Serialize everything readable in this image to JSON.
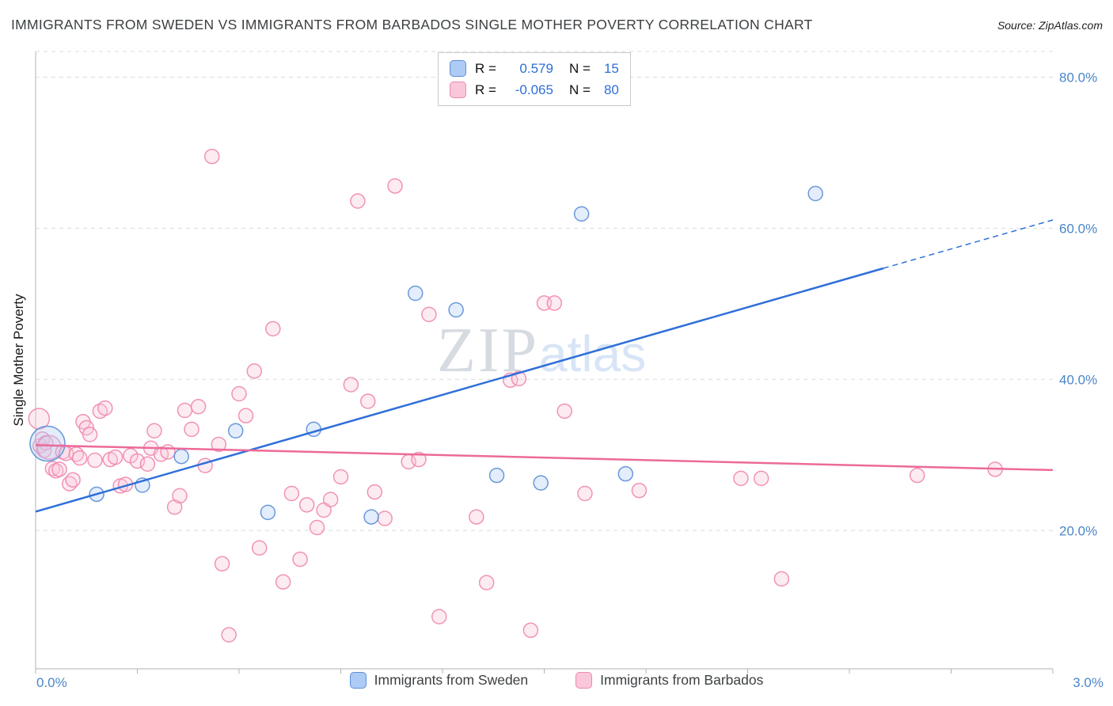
{
  "header": {
    "title": "IMMIGRANTS FROM SWEDEN VS IMMIGRANTS FROM BARBADOS SINGLE MOTHER POVERTY CORRELATION CHART",
    "source": "Source: ZipAtlas.com"
  },
  "watermark": {
    "part1": "ZIP",
    "part2": "atlas"
  },
  "legend_box": {
    "rows": [
      {
        "series": "Immigrants from Sweden",
        "r_label": "R =",
        "r_value": "0.579",
        "n_label": "N =",
        "n_value": "15"
      },
      {
        "series": "Immigrants from Barbados",
        "r_label": "R =",
        "r_value": "-0.065",
        "n_label": "N =",
        "n_value": "80"
      }
    ]
  },
  "chart_data": {
    "type": "scatter",
    "title": "Immigrants from Sweden vs Immigrants from Barbados Single Mother Poverty",
    "xlabel": "",
    "ylabel": "Single Mother Poverty",
    "x_axis": {
      "range": [
        0,
        3.0
      ],
      "tick_step": 0.3,
      "unit": "%",
      "ticks": [
        {
          "value": 0,
          "label": "0.0%"
        },
        {
          "value": 3.0,
          "label": "3.0%"
        }
      ]
    },
    "y_axis": {
      "range": [
        1.7,
        83.4
      ],
      "unit": "%",
      "gridlines": [
        20,
        40,
        60,
        80,
        83.4
      ],
      "ticks": [
        {
          "value": 80,
          "label": "80.0%"
        },
        {
          "value": 60,
          "label": "60.0%"
        },
        {
          "value": 40,
          "label": "40.0%"
        },
        {
          "value": 20,
          "label": "20.0%"
        }
      ],
      "label": "Single Mother Poverty"
    },
    "grid": "horizontal-dashed",
    "legend_position": "bottom",
    "series": [
      {
        "name": "Immigrants from Sweden",
        "R": 0.579,
        "N": 15,
        "fill": "#aecbf5",
        "stroke": "#5b8ed6",
        "points": [
          [
            0.035,
            31.5,
            22
          ],
          [
            0.18,
            24.8
          ],
          [
            0.315,
            26.0
          ],
          [
            0.43,
            29.8
          ],
          [
            0.59,
            33.2
          ],
          [
            0.685,
            22.4
          ],
          [
            0.82,
            33.4
          ],
          [
            0.99,
            21.8
          ],
          [
            1.12,
            51.4
          ],
          [
            1.24,
            49.2
          ],
          [
            1.36,
            27.3
          ],
          [
            1.49,
            26.3
          ],
          [
            1.61,
            61.9
          ],
          [
            1.74,
            27.5
          ],
          [
            2.3,
            64.6
          ]
        ]
      },
      {
        "name": "Immigrants from Barbados",
        "R": -0.065,
        "N": 80,
        "fill": "#f9c7d9",
        "stroke": "#ef87ae",
        "points": [
          [
            0.01,
            34.8,
            13
          ],
          [
            0.013,
            31.2
          ],
          [
            0.02,
            32.1
          ],
          [
            0.025,
            30.6
          ],
          [
            0.03,
            31.6
          ],
          [
            0.04,
            31.0,
            15
          ],
          [
            0.05,
            28.2
          ],
          [
            0.06,
            27.9
          ],
          [
            0.07,
            28.1
          ],
          [
            0.08,
            30.4
          ],
          [
            0.09,
            30.2
          ],
          [
            0.1,
            26.2
          ],
          [
            0.11,
            26.7
          ],
          [
            0.12,
            30.1
          ],
          [
            0.13,
            29.6
          ],
          [
            0.14,
            34.4
          ],
          [
            0.15,
            33.6
          ],
          [
            0.16,
            32.7
          ],
          [
            0.175,
            29.3
          ],
          [
            0.19,
            35.8
          ],
          [
            0.205,
            36.2
          ],
          [
            0.22,
            29.4
          ],
          [
            0.235,
            29.7
          ],
          [
            0.25,
            25.9
          ],
          [
            0.265,
            26.1
          ],
          [
            0.28,
            29.9
          ],
          [
            0.3,
            29.2
          ],
          [
            0.33,
            28.8
          ],
          [
            0.34,
            30.9
          ],
          [
            0.35,
            33.2
          ],
          [
            0.37,
            30.1
          ],
          [
            0.39,
            30.4
          ],
          [
            0.41,
            23.1
          ],
          [
            0.425,
            24.6
          ],
          [
            0.44,
            35.9
          ],
          [
            0.46,
            33.4
          ],
          [
            0.48,
            36.4
          ],
          [
            0.5,
            28.6
          ],
          [
            0.52,
            69.5
          ],
          [
            0.54,
            31.4
          ],
          [
            0.55,
            15.6
          ],
          [
            0.57,
            6.2
          ],
          [
            0.6,
            38.1
          ],
          [
            0.62,
            35.2
          ],
          [
            0.645,
            41.1
          ],
          [
            0.66,
            17.7
          ],
          [
            0.7,
            46.7
          ],
          [
            0.73,
            13.2
          ],
          [
            0.755,
            24.9
          ],
          [
            0.78,
            16.2
          ],
          [
            0.8,
            23.4
          ],
          [
            0.83,
            20.4
          ],
          [
            0.85,
            22.7
          ],
          [
            0.87,
            24.1
          ],
          [
            0.9,
            27.1
          ],
          [
            0.93,
            39.3
          ],
          [
            0.95,
            63.6
          ],
          [
            0.98,
            37.1
          ],
          [
            1.0,
            25.1
          ],
          [
            1.03,
            21.6
          ],
          [
            1.06,
            65.6
          ],
          [
            1.1,
            29.1
          ],
          [
            1.13,
            29.4
          ],
          [
            1.16,
            48.6
          ],
          [
            1.19,
            8.6
          ],
          [
            1.3,
            21.8
          ],
          [
            1.33,
            13.1
          ],
          [
            1.4,
            39.9
          ],
          [
            1.425,
            40.1
          ],
          [
            1.46,
            6.8
          ],
          [
            1.5,
            50.1
          ],
          [
            1.53,
            50.1
          ],
          [
            1.56,
            35.8
          ],
          [
            1.62,
            24.9
          ],
          [
            1.78,
            25.3
          ],
          [
            2.08,
            26.9
          ],
          [
            2.14,
            26.9
          ],
          [
            2.2,
            13.6
          ],
          [
            2.6,
            27.3
          ],
          [
            2.83,
            28.1
          ]
        ]
      }
    ],
    "trendlines": [
      {
        "series": "Immigrants from Sweden",
        "color": "#2e6fd8",
        "x": [
          0,
          3.0
        ],
        "y": [
          22.5,
          61.1
        ],
        "solid_end": [
          2.5,
          54.7
        ],
        "dashed_tail": true
      },
      {
        "series": "Immigrants from Barbados",
        "color": "#ec6a99",
        "x": [
          0,
          3.0
        ],
        "y": [
          31.3,
          28.0
        ],
        "dashed_tail": false
      }
    ]
  }
}
